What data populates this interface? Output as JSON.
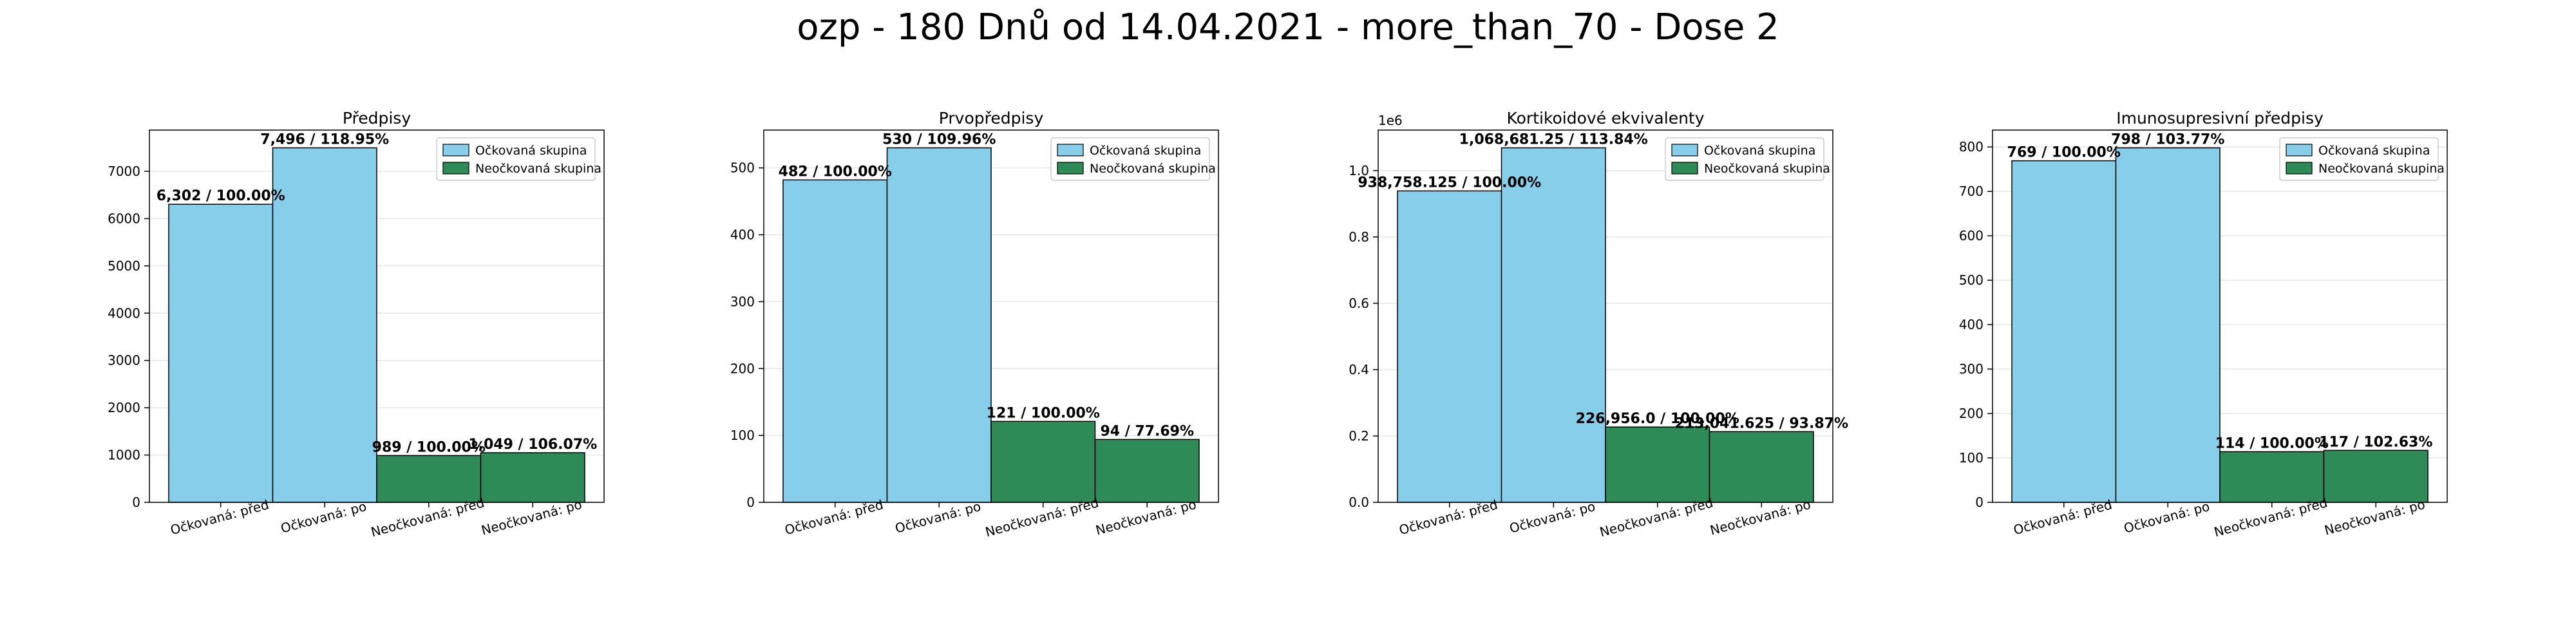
{
  "figure": {
    "title": "ozp - 180 Dnů od 14.04.2021 - more_than_70 - Dose 2"
  },
  "colors": {
    "vaccinated": "#87ceeb",
    "unvaccinated": "#2e8b57",
    "edge": "#000000",
    "grid": "#e6e6e6"
  },
  "chart_data": [
    {
      "type": "bar",
      "title": "Předpisy",
      "categories": [
        "Očkovaná: před",
        "Očkovaná: po",
        "Neočkovaná: před",
        "Neočkovaná: po"
      ],
      "values": [
        6302,
        7496,
        989,
        1049
      ],
      "bar_groups": [
        "vaccinated",
        "vaccinated",
        "unvaccinated",
        "unvaccinated"
      ],
      "data_labels": [
        "6,302 / 100.00%",
        "7,496 / 118.95%",
        "989 / 100.00%",
        "1,049 / 106.07%"
      ],
      "ylim": [
        0,
        7871
      ],
      "yticks": [
        0,
        1000,
        2000,
        3000,
        4000,
        5000,
        6000,
        7000
      ],
      "ytick_labels": [
        "0",
        "1000",
        "2000",
        "3000",
        "4000",
        "5000",
        "6000",
        "7000"
      ],
      "scale_label": "",
      "legend": [
        "Očkovaná skupina",
        "Neočkovaná skupina"
      ],
      "legend_position": "upper right",
      "grid": true
    },
    {
      "type": "bar",
      "title": "Prvopředpisy",
      "categories": [
        "Očkovaná: před",
        "Očkovaná: po",
        "Neočkovaná: před",
        "Neočkovaná: po"
      ],
      "values": [
        482,
        530,
        121,
        94
      ],
      "bar_groups": [
        "vaccinated",
        "vaccinated",
        "unvaccinated",
        "unvaccinated"
      ],
      "data_labels": [
        "482 / 100.00%",
        "530 / 109.96%",
        "121 / 100.00%",
        "94 / 77.69%"
      ],
      "ylim": [
        0,
        556.5
      ],
      "yticks": [
        0,
        100,
        200,
        300,
        400,
        500
      ],
      "ytick_labels": [
        "0",
        "100",
        "200",
        "300",
        "400",
        "500"
      ],
      "scale_label": "",
      "legend": [
        "Očkovaná skupina",
        "Neočkovaná skupina"
      ],
      "legend_position": "upper right",
      "grid": true
    },
    {
      "type": "bar",
      "title": "Kortikoidové ekvivalenty",
      "categories": [
        "Očkovaná: před",
        "Očkovaná: po",
        "Neočkovaná: před",
        "Neočkovaná: po"
      ],
      "values": [
        938758.125,
        1068681.25,
        226956.0,
        213041.625
      ],
      "bar_groups": [
        "vaccinated",
        "vaccinated",
        "unvaccinated",
        "unvaccinated"
      ],
      "data_labels": [
        "938,758.125 / 100.00%",
        "1,068,681.25 / 113.84%",
        "226,956.0 / 100.00%",
        "213,041.625 / 93.87%"
      ],
      "ylim": [
        0,
        1122115
      ],
      "yticks": [
        0,
        200000,
        400000,
        600000,
        800000,
        1000000
      ],
      "ytick_labels": [
        "0.0",
        "0.2",
        "0.4",
        "0.6",
        "0.8",
        "1.0"
      ],
      "scale_label": "1e6",
      "legend": [
        "Očkovaná skupina",
        "Neočkovaná skupina"
      ],
      "legend_position": "upper right",
      "grid": true
    },
    {
      "type": "bar",
      "title": "Imunosupresivní předpisy",
      "categories": [
        "Očkovaná: před",
        "Očkovaná: po",
        "Neočkovaná: před",
        "Neočkovaná: po"
      ],
      "values": [
        769,
        798,
        114,
        117
      ],
      "bar_groups": [
        "vaccinated",
        "vaccinated",
        "unvaccinated",
        "unvaccinated"
      ],
      "data_labels": [
        "769 / 100.00%",
        "798 / 103.77%",
        "114 / 100.00%",
        "117 / 102.63%"
      ],
      "ylim": [
        0,
        838
      ],
      "yticks": [
        0,
        100,
        200,
        300,
        400,
        500,
        600,
        700,
        800
      ],
      "ytick_labels": [
        "0",
        "100",
        "200",
        "300",
        "400",
        "500",
        "600",
        "700",
        "800"
      ],
      "scale_label": "",
      "legend": [
        "Očkovaná skupina",
        "Neočkovaná skupina"
      ],
      "legend_position": "upper right",
      "grid": true
    }
  ]
}
